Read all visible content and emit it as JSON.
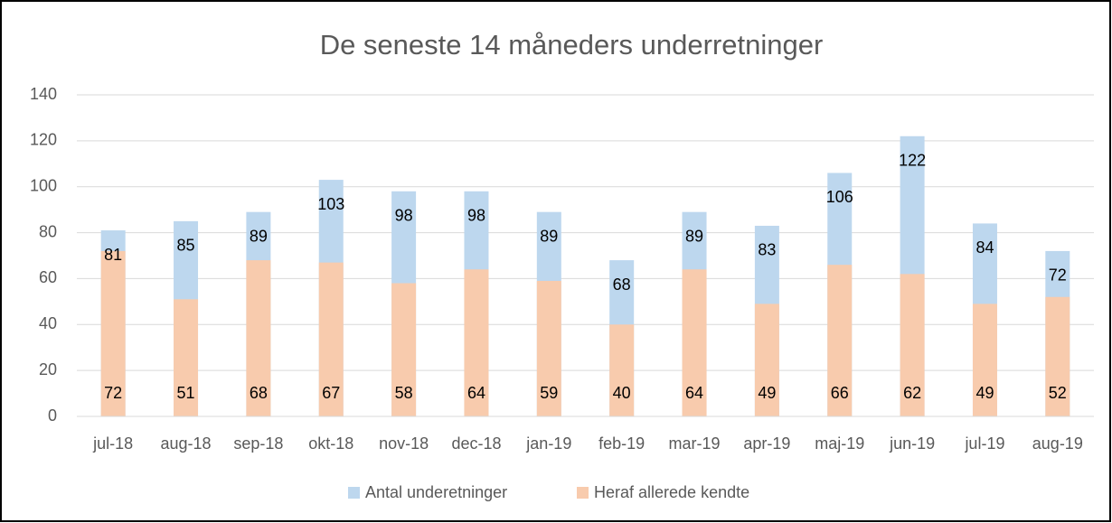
{
  "chart_data": {
    "type": "overlap-bar",
    "title": "De seneste 14 måneders underretninger",
    "categories": [
      "jul-18",
      "aug-18",
      "sep-18",
      "okt-18",
      "nov-18",
      "dec-18",
      "jan-19",
      "feb-19",
      "mar-19",
      "apr-19",
      "maj-19",
      "jun-19",
      "jul-19",
      "aug-19"
    ],
    "series": [
      {
        "name": "Antal underetninger",
        "color": "#bdd7ee",
        "values": [
          81,
          85,
          89,
          103,
          98,
          98,
          89,
          68,
          89,
          83,
          106,
          122,
          84,
          72
        ]
      },
      {
        "name": "Heraf allerede kendte",
        "color": "#f8cbad",
        "values": [
          72,
          51,
          68,
          67,
          58,
          64,
          59,
          40,
          64,
          49,
          66,
          62,
          49,
          52
        ]
      }
    ],
    "ylim": [
      0,
      140
    ],
    "yticks": [
      0,
      20,
      40,
      60,
      80,
      100,
      120,
      140
    ],
    "grid": true,
    "legend": "bottom"
  }
}
